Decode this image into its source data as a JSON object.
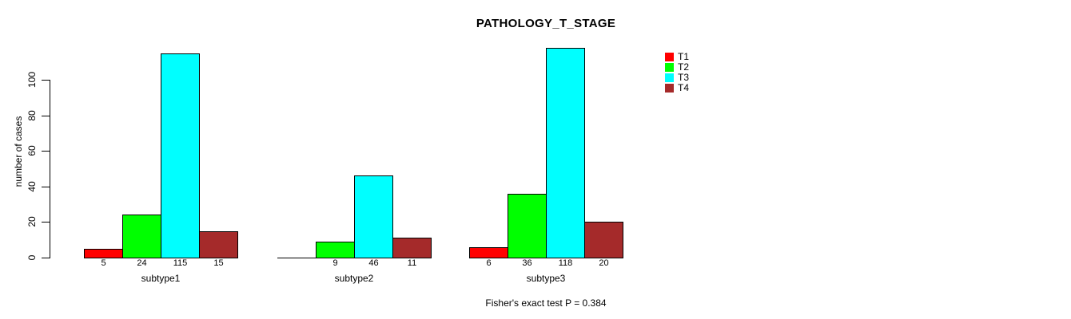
{
  "title": "PATHOLOGY_T_STAGE",
  "footer": "Fisher's exact test P = 0.384",
  "y_axis": {
    "label": "number of cases",
    "ticks": [
      0,
      20,
      40,
      60,
      80,
      100
    ]
  },
  "legend": {
    "entries": [
      {
        "label": "T1",
        "color": "#FF0000"
      },
      {
        "label": "T2",
        "color": "#00FF00"
      },
      {
        "label": "T3",
        "color": "#00FFFF"
      },
      {
        "label": "T4",
        "color": "#A52A2A"
      }
    ]
  },
  "chart_data": {
    "type": "bar",
    "title": "PATHOLOGY_T_STAGE",
    "categories": [
      "subtype1",
      "subtype2",
      "subtype3"
    ],
    "series": [
      {
        "name": "T1",
        "color": "#FF0000",
        "values": [
          5,
          0,
          6
        ]
      },
      {
        "name": "T2",
        "color": "#00FF00",
        "values": [
          24,
          9,
          36
        ]
      },
      {
        "name": "T3",
        "color": "#00FFFF",
        "values": [
          115,
          46,
          118
        ]
      },
      {
        "name": "T4",
        "color": "#A52A2A",
        "values": [
          15,
          11,
          20
        ]
      }
    ],
    "xlabel": "",
    "ylabel": "number of cases",
    "ylim": [
      0,
      100
    ],
    "yticks": [
      0,
      20,
      40,
      60,
      80,
      100
    ],
    "grid": false,
    "legend_position": "top-right",
    "bar_value_labels_shown": true,
    "zero_value_labels_hidden": true,
    "annotation": "Fisher's exact test P = 0.384"
  }
}
